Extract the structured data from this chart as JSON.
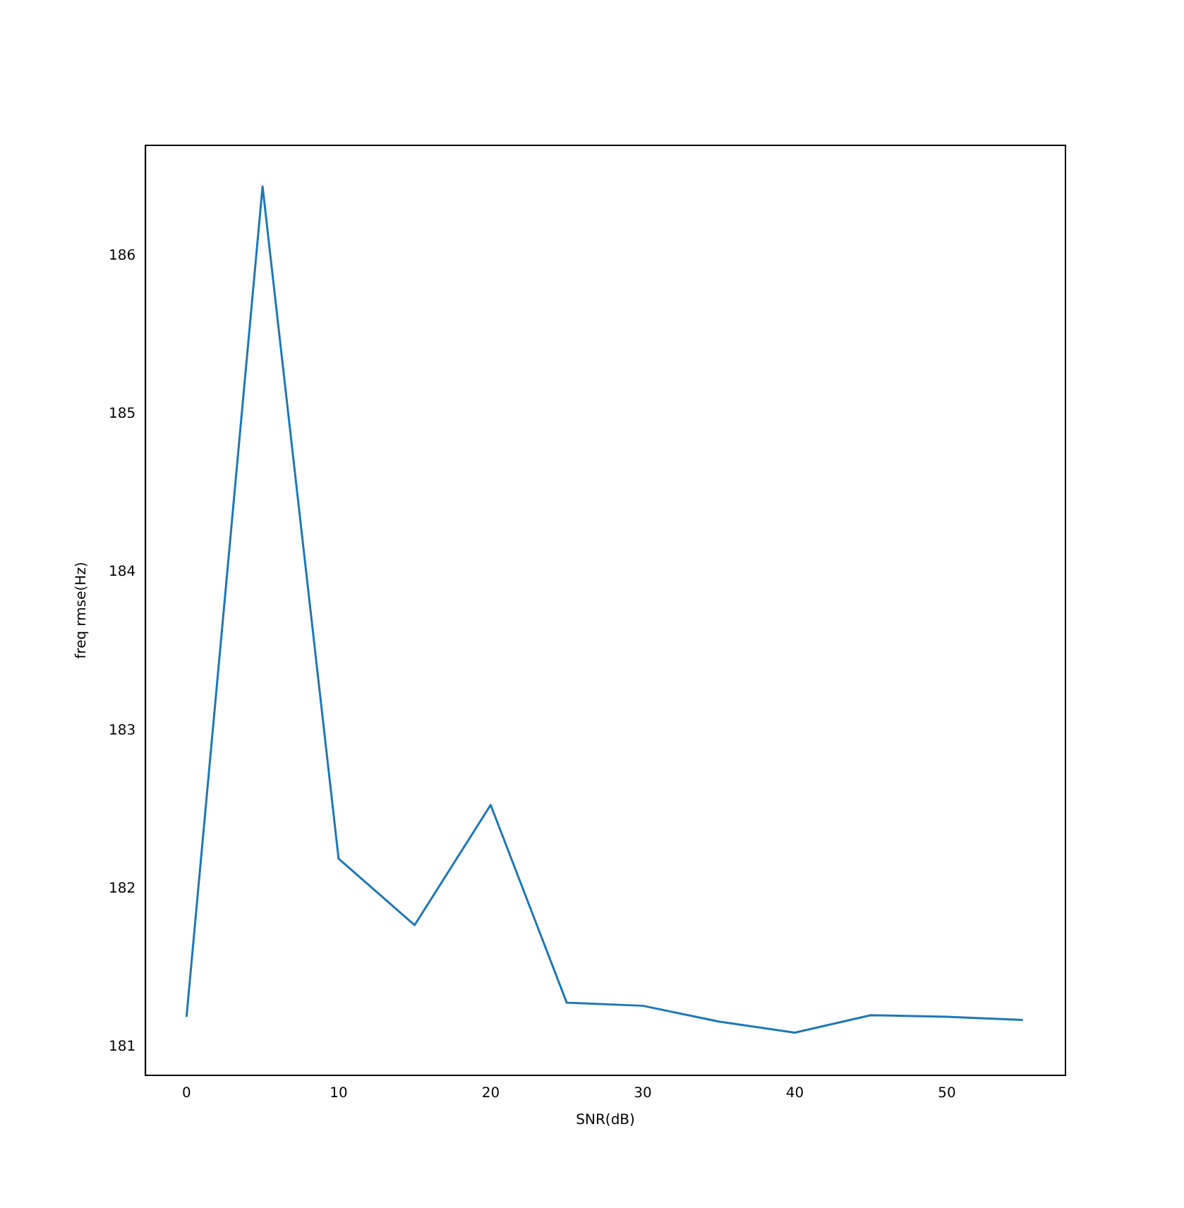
{
  "chart_data": {
    "type": "line",
    "xlabel": "SNR(dB)",
    "ylabel": "freq rmse(Hz)",
    "x": [
      0,
      5,
      10,
      15,
      20,
      25,
      30,
      35,
      40,
      45,
      50,
      55
    ],
    "series": [
      {
        "color": "#1f77b4",
        "values": [
          181.19,
          186.44,
          182.19,
          181.77,
          182.53,
          181.28,
          181.26,
          181.16,
          181.09,
          181.2,
          181.19,
          181.17
        ]
      }
    ],
    "xlim": [
      -2.7,
      57.8
    ],
    "xticks": [
      0,
      10,
      20,
      30,
      40,
      50
    ],
    "ylim": [
      180.82,
      186.7
    ],
    "yticks": [
      181,
      182,
      183,
      184,
      185,
      186
    ],
    "grid": false,
    "legend": false,
    "marker": "none",
    "line_style": "solid"
  }
}
